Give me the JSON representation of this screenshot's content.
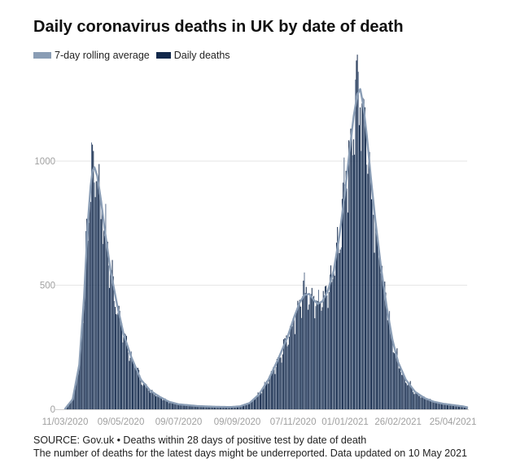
{
  "chart_data": {
    "type": "bar",
    "title": "Daily coronavirus deaths in UK by date of death",
    "legend": [
      "7-day rolling average",
      "Daily deaths"
    ],
    "colors": {
      "line": "#8a9db5",
      "bar": "#13294b",
      "bar_light": "#5b6f8c",
      "grid": "#e6e6e6",
      "tick": "#a0a0a0"
    },
    "x_ticks": [
      "11/03/2020",
      "09/05/2020",
      "09/07/2020",
      "09/09/2020",
      "07/11/2020",
      "01/01/2021",
      "26/02/2021",
      "25/04/2021"
    ],
    "x_range_days": [
      0,
      425
    ],
    "x_tick_days": [
      0,
      59,
      120,
      182,
      241,
      296,
      352,
      410
    ],
    "y_ticks": [
      0,
      500,
      1000
    ],
    "ylim": [
      0,
      1350
    ],
    "rolling_average": [
      [
        0,
        2
      ],
      [
        8,
        40
      ],
      [
        15,
        180
      ],
      [
        20,
        450
      ],
      [
        24,
        750
      ],
      [
        27,
        900
      ],
      [
        29,
        960
      ],
      [
        31,
        975
      ],
      [
        34,
        940
      ],
      [
        38,
        840
      ],
      [
        42,
        720
      ],
      [
        48,
        560
      ],
      [
        55,
        420
      ],
      [
        62,
        300
      ],
      [
        70,
        210
      ],
      [
        80,
        120
      ],
      [
        90,
        75
      ],
      [
        100,
        50
      ],
      [
        110,
        30
      ],
      [
        120,
        20
      ],
      [
        140,
        13
      ],
      [
        160,
        10
      ],
      [
        175,
        9
      ],
      [
        185,
        12
      ],
      [
        195,
        25
      ],
      [
        205,
        60
      ],
      [
        215,
        120
      ],
      [
        225,
        200
      ],
      [
        235,
        290
      ],
      [
        242,
        370
      ],
      [
        248,
        430
      ],
      [
        253,
        460
      ],
      [
        258,
        465
      ],
      [
        263,
        440
      ],
      [
        267,
        425
      ],
      [
        272,
        435
      ],
      [
        278,
        480
      ],
      [
        284,
        560
      ],
      [
        290,
        700
      ],
      [
        296,
        880
      ],
      [
        301,
        1050
      ],
      [
        305,
        1180
      ],
      [
        309,
        1270
      ],
      [
        312,
        1290
      ],
      [
        315,
        1230
      ],
      [
        319,
        1100
      ],
      [
        323,
        940
      ],
      [
        328,
        760
      ],
      [
        334,
        570
      ],
      [
        340,
        410
      ],
      [
        346,
        280
      ],
      [
        352,
        190
      ],
      [
        360,
        120
      ],
      [
        370,
        70
      ],
      [
        380,
        45
      ],
      [
        390,
        30
      ],
      [
        400,
        22
      ],
      [
        410,
        17
      ],
      [
        420,
        12
      ],
      [
        425,
        8
      ]
    ],
    "peaks": [
      {
        "day": 28,
        "value": 1075
      },
      {
        "day": 310,
        "value": 1360
      }
    ]
  },
  "source_line1": "SOURCE: Gov.uk • Deaths within 28 days of positive test by date of death",
  "source_line2": "The number of deaths for the latest days might be underreported. Data updated on 10 May 2021"
}
